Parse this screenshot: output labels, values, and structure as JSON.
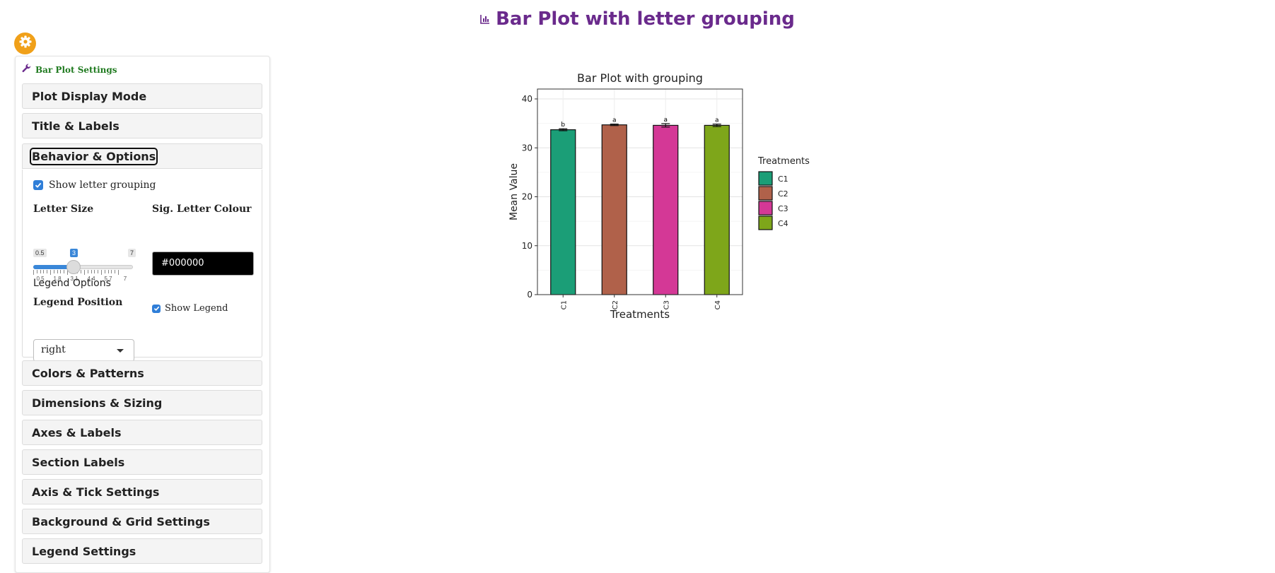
{
  "page": {
    "title": "Bar Plot with letter grouping"
  },
  "panel": {
    "title": "Bar Plot Settings",
    "sections": [
      "Plot Display Mode",
      "Title & Labels",
      "Behavior & Options",
      "Colors & Patterns",
      "Dimensions & Sizing",
      "Axes & Labels",
      "Section Labels",
      "Axis & Tick Settings",
      "Background & Grid Settings",
      "Legend Settings"
    ],
    "behavior": {
      "show_letter_grouping_label": "Show letter grouping",
      "show_letter_grouping_checked": true,
      "letter_size_label": "Letter Size",
      "letter_size": {
        "min": 0.5,
        "max": 7,
        "value": 3,
        "min_label": "0.5",
        "max_label": "7",
        "value_label": "3",
        "ticks": [
          "0.5",
          "1.8",
          "3.1",
          "4.4",
          "5.7",
          "7"
        ]
      },
      "sig_letter_colour_label": "Sig. Letter Colour",
      "sig_letter_colour": "#000000",
      "legend_options_label": "Legend Options",
      "legend_position_label": "Legend Position",
      "legend_position": "right",
      "show_legend_label": "Show Legend",
      "show_legend_checked": true
    }
  },
  "colors": {
    "title": "#6a2a8c",
    "gear": "#f0a019",
    "panel_title": "#1f7a1f",
    "accent": "#2f7ed8"
  },
  "chart_data": {
    "type": "bar",
    "title": "Bar Plot with grouping",
    "xlabel": "Treatments",
    "ylabel": "Mean Value",
    "ylim": [
      0,
      40
    ],
    "yticks": [
      0,
      10,
      20,
      30,
      40
    ],
    "categories": [
      "C1",
      "C2",
      "C3",
      "C4"
    ],
    "values": [
      33.7,
      34.7,
      34.6,
      34.6
    ],
    "errors": [
      0.2,
      0.15,
      0.35,
      0.25
    ],
    "letters": [
      "b",
      "a",
      "a",
      "a"
    ],
    "colors": [
      "#1b9e77",
      "#b0614a",
      "#d43896",
      "#7ea61a"
    ],
    "grid": true,
    "legend": {
      "title": "Treatments",
      "position": "right",
      "entries": [
        "C1",
        "C2",
        "C3",
        "C4"
      ]
    }
  }
}
